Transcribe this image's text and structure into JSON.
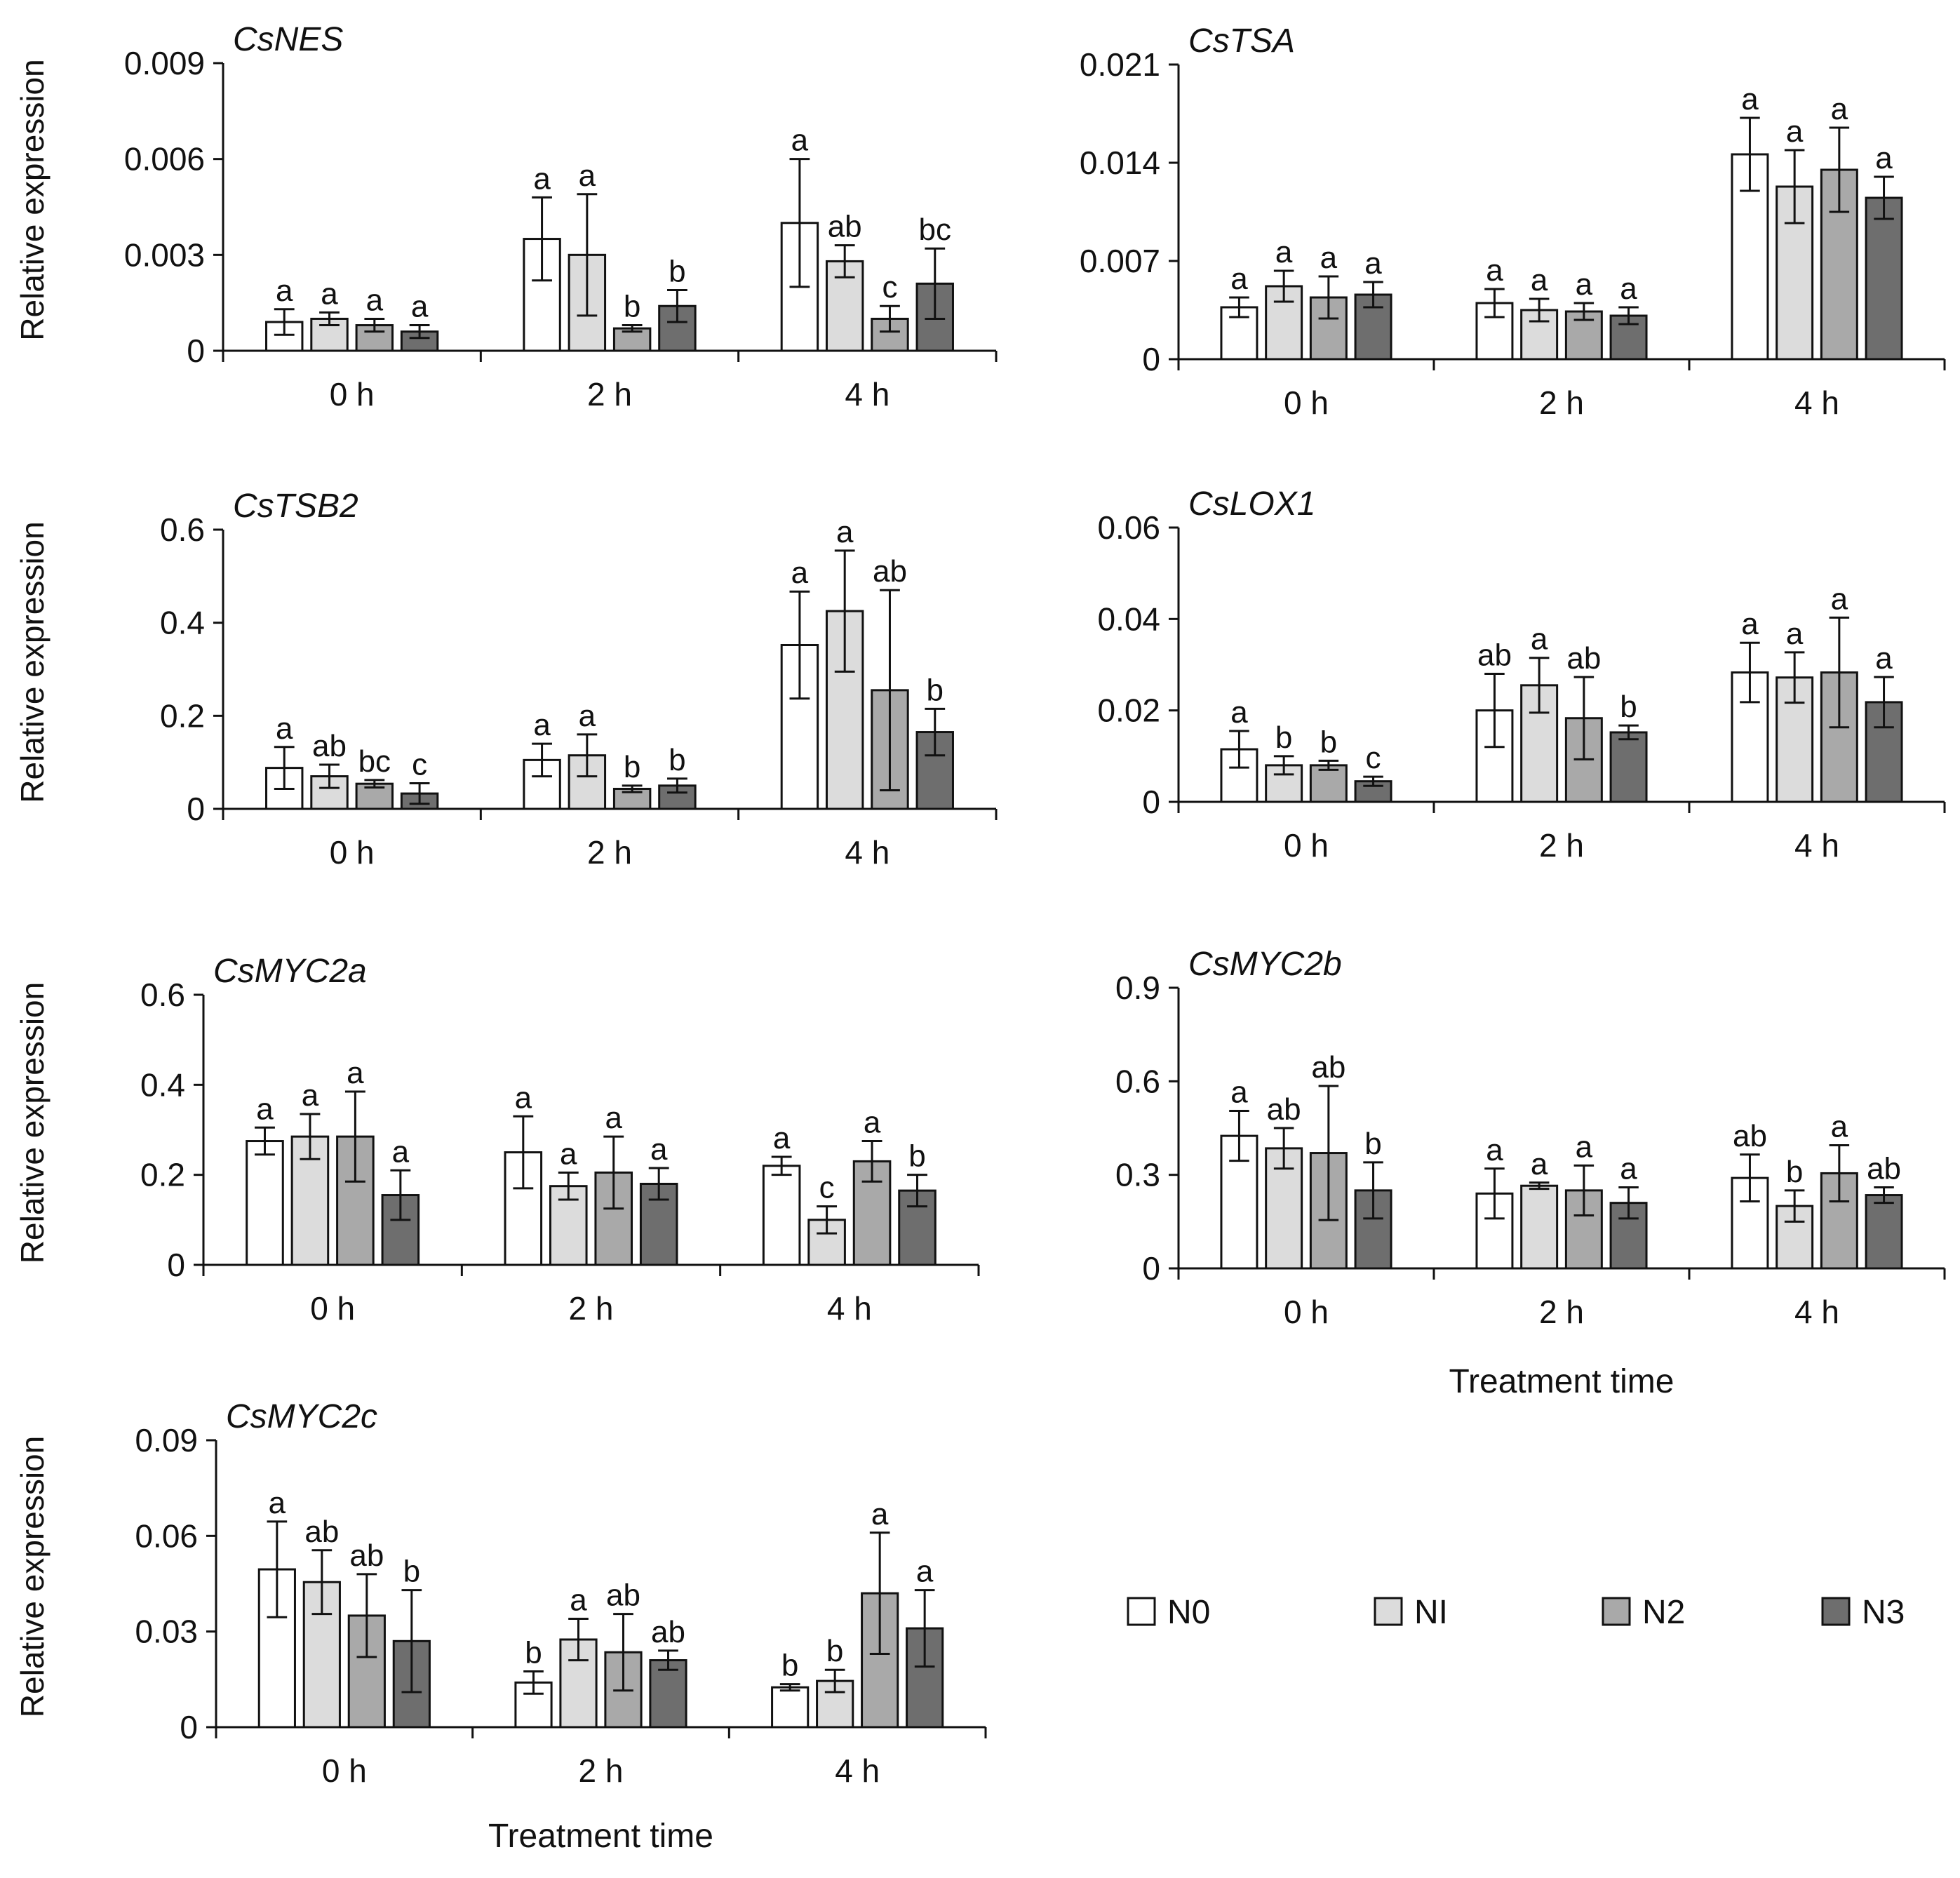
{
  "colors": {
    "N0": "#ffffff",
    "NI": "#dcdcdc",
    "N2": "#a9a9a9",
    "N3": "#6e6e6e"
  },
  "legend": [
    "N0",
    "NI",
    "N2",
    "N3"
  ],
  "shared_ylabel": "Relative expression",
  "shared_xlabel": "Treatment time",
  "chart_data": [
    {
      "type": "bar",
      "title": "CsNES",
      "ylabel": "Relative expression",
      "xlabel": "",
      "categories": [
        "0 h",
        "2 h",
        "4 h"
      ],
      "ylim": [
        0,
        0.009
      ],
      "yticks": [
        0,
        0.003,
        0.006,
        0.009
      ],
      "ytick_labels": [
        "0",
        "0.003",
        "0.006",
        "0.009"
      ],
      "series": [
        {
          "name": "N0",
          "values": [
            0.0009,
            0.0035,
            0.004
          ],
          "errors": [
            0.0004,
            0.0013,
            0.002
          ],
          "letters": [
            "a",
            "a",
            "a"
          ]
        },
        {
          "name": "NI",
          "values": [
            0.001,
            0.003,
            0.0028
          ],
          "errors": [
            0.0002,
            0.0019,
            0.0005
          ],
          "letters": [
            "a",
            "a",
            "ab"
          ]
        },
        {
          "name": "N2",
          "values": [
            0.0008,
            0.0007,
            0.001
          ],
          "errors": [
            0.0002,
            0.0001,
            0.0004
          ],
          "letters": [
            "a",
            "b",
            "c"
          ]
        },
        {
          "name": "N3",
          "values": [
            0.0006,
            0.0014,
            0.0021
          ],
          "errors": [
            0.0002,
            0.0005,
            0.0011
          ],
          "letters": [
            "a",
            "b",
            "bc"
          ]
        }
      ]
    },
    {
      "type": "bar",
      "title": "CsTSA",
      "ylabel": "",
      "xlabel": "",
      "categories": [
        "0 h",
        "2 h",
        "4 h"
      ],
      "ylim": [
        0,
        0.021
      ],
      "yticks": [
        0,
        0.007,
        0.014,
        0.021
      ],
      "ytick_labels": [
        "0",
        "0.007",
        "0.014",
        "0.021"
      ],
      "series": [
        {
          "name": "N0",
          "values": [
            0.0037,
            0.004,
            0.0146
          ],
          "errors": [
            0.0007,
            0.001,
            0.0026
          ],
          "letters": [
            "a",
            "a",
            "a"
          ]
        },
        {
          "name": "NI",
          "values": [
            0.0052,
            0.0035,
            0.0123
          ],
          "errors": [
            0.0011,
            0.0008,
            0.0026
          ],
          "letters": [
            "a",
            "a",
            "a"
          ]
        },
        {
          "name": "N2",
          "values": [
            0.0044,
            0.0034,
            0.0135
          ],
          "errors": [
            0.0015,
            0.0006,
            0.003
          ],
          "letters": [
            "a",
            "a",
            "a"
          ]
        },
        {
          "name": "N3",
          "values": [
            0.0046,
            0.0031,
            0.0115
          ],
          "errors": [
            0.0009,
            0.0006,
            0.0015
          ],
          "letters": [
            "a",
            "a",
            "a"
          ]
        }
      ]
    },
    {
      "type": "bar",
      "title": "CsTSB2",
      "ylabel": "Relative expression",
      "xlabel": "",
      "categories": [
        "0 h",
        "2 h",
        "4 h"
      ],
      "ylim": [
        0,
        0.6
      ],
      "yticks": [
        0,
        0.2,
        0.4,
        0.6
      ],
      "ytick_labels": [
        "0",
        "0.2",
        "0.4",
        "0.6"
      ],
      "series": [
        {
          "name": "N0",
          "values": [
            0.088,
            0.105,
            0.352
          ],
          "errors": [
            0.045,
            0.035,
            0.115
          ],
          "letters": [
            "a",
            "a",
            "a"
          ]
        },
        {
          "name": "NI",
          "values": [
            0.07,
            0.115,
            0.425
          ],
          "errors": [
            0.025,
            0.045,
            0.13
          ],
          "letters": [
            "ab",
            "a",
            "a"
          ]
        },
        {
          "name": "N2",
          "values": [
            0.054,
            0.043,
            0.255
          ],
          "errors": [
            0.008,
            0.007,
            0.215
          ],
          "letters": [
            "bc",
            "b",
            "ab"
          ]
        },
        {
          "name": "N3",
          "values": [
            0.033,
            0.05,
            0.165
          ],
          "errors": [
            0.022,
            0.015,
            0.05
          ],
          "letters": [
            "c",
            "b",
            "b"
          ]
        }
      ]
    },
    {
      "type": "bar",
      "title": "CsLOX1",
      "ylabel": "",
      "xlabel": "",
      "categories": [
        "0 h",
        "2 h",
        "4 h"
      ],
      "ylim": [
        0,
        0.06
      ],
      "yticks": [
        0,
        0.02,
        0.04,
        0.06
      ],
      "ytick_labels": [
        "0",
        "0.02",
        "0.04",
        "0.06"
      ],
      "series": [
        {
          "name": "N0",
          "values": [
            0.0115,
            0.02,
            0.0283
          ],
          "errors": [
            0.004,
            0.008,
            0.0065
          ],
          "letters": [
            "a",
            "ab",
            "a"
          ]
        },
        {
          "name": "NI",
          "values": [
            0.008,
            0.0255,
            0.0272
          ],
          "errors": [
            0.002,
            0.006,
            0.0055
          ],
          "letters": [
            "b",
            "a",
            "a"
          ]
        },
        {
          "name": "N2",
          "values": [
            0.008,
            0.0183,
            0.0283
          ],
          "errors": [
            0.001,
            0.009,
            0.012
          ],
          "letters": [
            "b",
            "ab",
            "a"
          ]
        },
        {
          "name": "N3",
          "values": [
            0.0045,
            0.0152,
            0.0218
          ],
          "errors": [
            0.001,
            0.0015,
            0.0055
          ],
          "letters": [
            "c",
            "b",
            "a"
          ]
        }
      ]
    },
    {
      "type": "bar",
      "title": "CsMYC2a",
      "ylabel": "Relative expression",
      "xlabel": "",
      "categories": [
        "0 h",
        "2 h",
        "4 h"
      ],
      "ylim": [
        0,
        0.6
      ],
      "yticks": [
        0,
        0.2,
        0.4,
        0.6
      ],
      "ytick_labels": [
        "0",
        "0.2",
        "0.4",
        "0.6"
      ],
      "series": [
        {
          "name": "N0",
          "values": [
            0.275,
            0.25,
            0.22
          ],
          "errors": [
            0.03,
            0.08,
            0.02
          ],
          "letters": [
            "a",
            "a",
            "a"
          ]
        },
        {
          "name": "NI",
          "values": [
            0.285,
            0.175,
            0.1
          ],
          "errors": [
            0.05,
            0.03,
            0.03
          ],
          "letters": [
            "a",
            "a",
            "c"
          ]
        },
        {
          "name": "N2",
          "values": [
            0.285,
            0.205,
            0.23
          ],
          "errors": [
            0.1,
            0.08,
            0.045
          ],
          "letters": [
            "a",
            "a",
            "a"
          ]
        },
        {
          "name": "N3",
          "values": [
            0.155,
            0.18,
            0.165
          ],
          "errors": [
            0.055,
            0.035,
            0.035
          ],
          "letters": [
            "a",
            "a",
            "b"
          ]
        }
      ]
    },
    {
      "type": "bar",
      "title": "CsMYC2b",
      "ylabel": "",
      "xlabel": "Treatment time",
      "categories": [
        "0 h",
        "2 h",
        "4 h"
      ],
      "ylim": [
        0,
        0.9
      ],
      "yticks": [
        0,
        0.3,
        0.6,
        0.9
      ],
      "ytick_labels": [
        "0",
        "0.3",
        "0.6",
        "0.9"
      ],
      "series": [
        {
          "name": "N0",
          "values": [
            0.425,
            0.24,
            0.29
          ],
          "errors": [
            0.08,
            0.08,
            0.075
          ],
          "letters": [
            "a",
            "a",
            "ab"
          ]
        },
        {
          "name": "NI",
          "values": [
            0.385,
            0.265,
            0.2
          ],
          "errors": [
            0.065,
            0.01,
            0.05
          ],
          "letters": [
            "ab",
            "a",
            "b"
          ]
        },
        {
          "name": "N2",
          "values": [
            0.37,
            0.25,
            0.305
          ],
          "errors": [
            0.215,
            0.08,
            0.09
          ],
          "letters": [
            "ab",
            "a",
            "a"
          ]
        },
        {
          "name": "N3",
          "values": [
            0.25,
            0.21,
            0.235
          ],
          "errors": [
            0.09,
            0.05,
            0.025
          ],
          "letters": [
            "b",
            "a",
            "ab"
          ]
        }
      ]
    },
    {
      "type": "bar",
      "title": "CsMYC2c",
      "ylabel": "Relative expression",
      "xlabel": "Treatment time",
      "categories": [
        "0 h",
        "2 h",
        "4 h"
      ],
      "ylim": [
        0,
        0.09
      ],
      "yticks": [
        0,
        0.03,
        0.06,
        0.09
      ],
      "ytick_labels": [
        "0",
        "0.03",
        "0.06",
        "0.09"
      ],
      "series": [
        {
          "name": "N0",
          "values": [
            0.0495,
            0.014,
            0.0125
          ],
          "errors": [
            0.015,
            0.0035,
            0.001
          ],
          "letters": [
            "a",
            "b",
            "b"
          ]
        },
        {
          "name": "NI",
          "values": [
            0.0455,
            0.0275,
            0.0145
          ],
          "errors": [
            0.01,
            0.0065,
            0.0035
          ],
          "letters": [
            "ab",
            "a",
            "b"
          ]
        },
        {
          "name": "N2",
          "values": [
            0.035,
            0.0235,
            0.042
          ],
          "errors": [
            0.013,
            0.012,
            0.019
          ],
          "letters": [
            "ab",
            "ab",
            "a"
          ]
        },
        {
          "name": "N3",
          "values": [
            0.027,
            0.021,
            0.031
          ],
          "errors": [
            0.016,
            0.003,
            0.012
          ],
          "letters": [
            "b",
            "ab",
            "a"
          ]
        }
      ]
    }
  ]
}
